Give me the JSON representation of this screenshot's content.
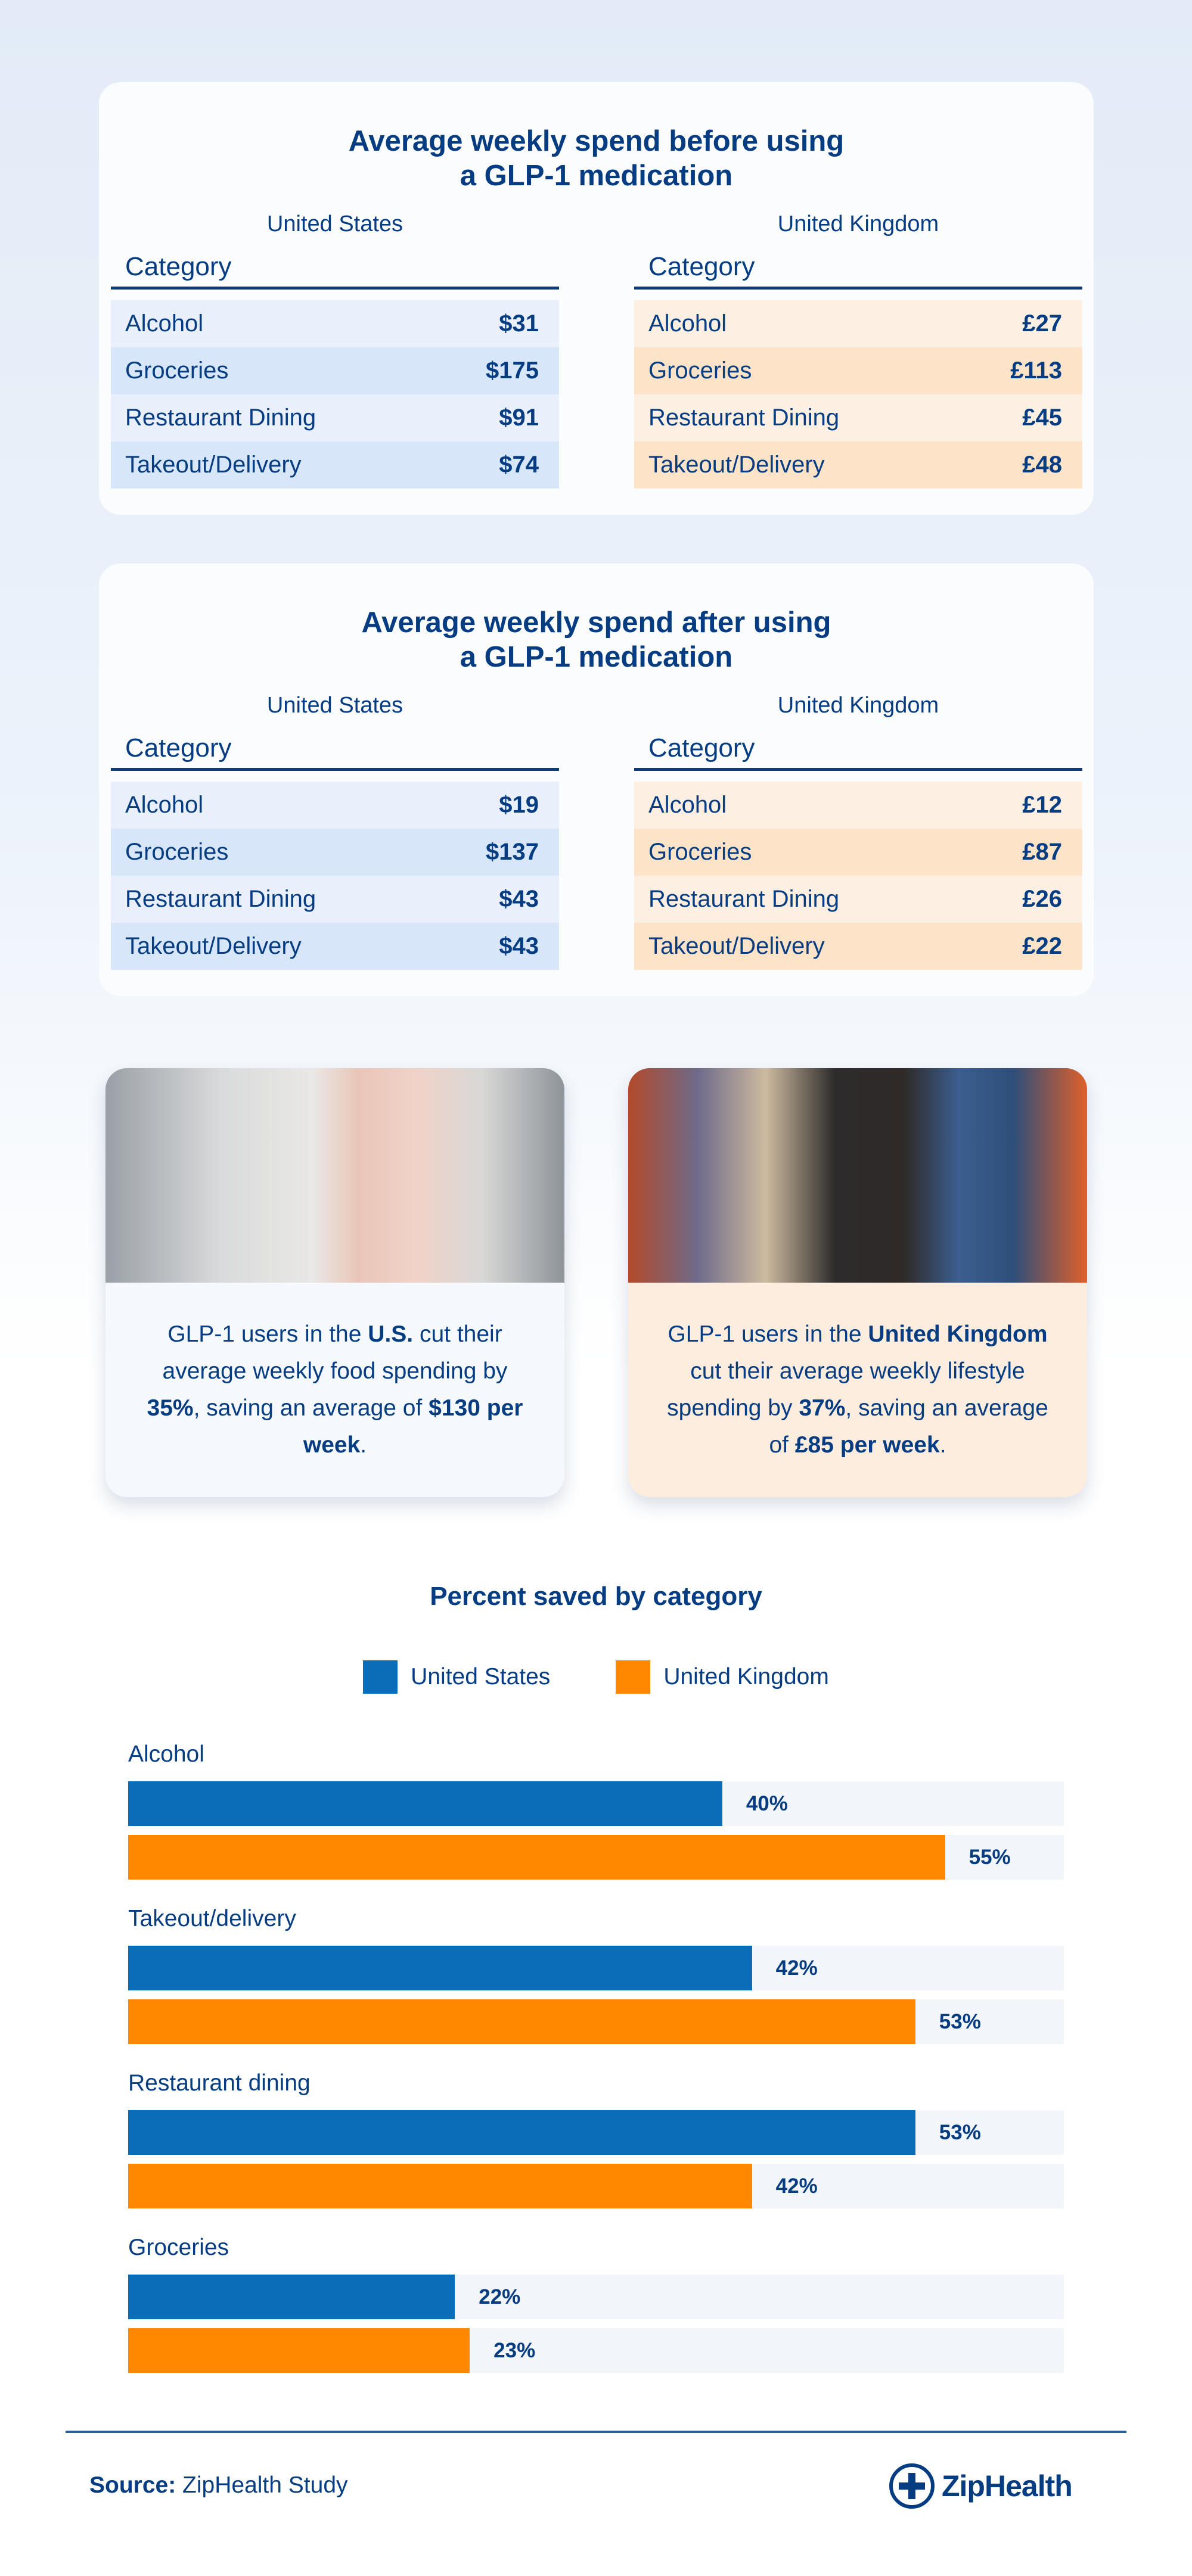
{
  "colors": {
    "navy": "#063d82",
    "us": "#0b6db7",
    "uk": "#ff8800"
  },
  "tables": [
    {
      "title": "Average weekly spend before using a GLP-1 medication",
      "title_l1": "Average weekly spend before using",
      "title_l2": "a GLP-1 medication",
      "us": {
        "country": "United States",
        "header": "Category",
        "rows": [
          {
            "label": "Alcohol",
            "value": "$31"
          },
          {
            "label": "Groceries",
            "value": "$175"
          },
          {
            "label": "Restaurant Dining",
            "value": "$91"
          },
          {
            "label": "Takeout/Delivery",
            "value": "$74"
          }
        ]
      },
      "uk": {
        "country": "United Kingdom",
        "header": "Category",
        "rows": [
          {
            "label": "Alcohol",
            "value": "£27"
          },
          {
            "label": "Groceries",
            "value": "£113"
          },
          {
            "label": "Restaurant Dining",
            "value": "£45"
          },
          {
            "label": "Takeout/Delivery",
            "value": "£48"
          }
        ]
      }
    },
    {
      "title_l1": "Average weekly spend after using",
      "title_l2": "a GLP-1 medication",
      "us": {
        "country": "United States",
        "header": "Category",
        "rows": [
          {
            "label": "Alcohol",
            "value": "$19"
          },
          {
            "label": "Groceries",
            "value": "$137"
          },
          {
            "label": "Restaurant Dining",
            "value": "$43"
          },
          {
            "label": "Takeout/Delivery",
            "value": "$43"
          }
        ]
      },
      "uk": {
        "country": "United Kingdom",
        "header": "Category",
        "rows": [
          {
            "label": "Alcohol",
            "value": "£12"
          },
          {
            "label": "Groceries",
            "value": "£87"
          },
          {
            "label": "Restaurant Dining",
            "value": "£26"
          },
          {
            "label": "Takeout/Delivery",
            "value": "£22"
          }
        ]
      }
    }
  ],
  "cards": {
    "us": {
      "t1": "GLP-1 users in the ",
      "b1": "U.S.",
      "t2": " cut their average weekly food spending by ",
      "b2": "35%",
      "t3": ", saving an average of ",
      "b3": "$130 per week",
      "t4": "."
    },
    "uk": {
      "t1": "GLP-1 users in the ",
      "b1": "United Kingdom",
      "t2": " cut their average weekly lifestyle spending by ",
      "b2": "37%",
      "t3": ", saving an average of ",
      "b3": "£85 per week",
      "t4": "."
    }
  },
  "chart_data": {
    "type": "bar",
    "orientation": "horizontal",
    "title": "Percent saved by category",
    "categories": [
      "Alcohol",
      "Takeout/delivery",
      "Restaurant dining",
      "Groceries"
    ],
    "series": [
      {
        "name": "United States",
        "color": "#0b6db7",
        "values": [
          40,
          42,
          53,
          22
        ]
      },
      {
        "name": "United Kingdom",
        "color": "#ff8800",
        "values": [
          55,
          53,
          42,
          23
        ]
      }
    ],
    "value_suffix": "%",
    "xlim": [
      0,
      63
    ],
    "legend": "top-center",
    "grid": false
  },
  "footer": {
    "source_label": "Source:",
    "source_text": " ZipHealth Study",
    "logo": "ZipHealth"
  }
}
